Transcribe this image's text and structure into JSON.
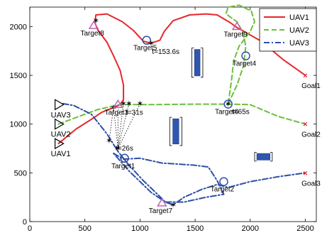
{
  "chart_data": {
    "type": "line",
    "xlim": [
      0,
      2600
    ],
    "ylim": [
      0,
      2200
    ],
    "x_ticks": [
      0,
      500,
      1000,
      1500,
      2000,
      2500
    ],
    "y_ticks": [
      0,
      500,
      1000,
      1500,
      2000
    ],
    "grid": false,
    "legend_position": "top-right",
    "colors": {
      "UAV1": "#e8262b",
      "UAV2": "#6cbf3e",
      "UAV3": "#2d4fa8",
      "obstacle": "#2f56b0",
      "target": "#c062b8",
      "marker": "#111111"
    },
    "series": [
      {
        "name": "UAV1",
        "style": "solid",
        "points": [
          [
            260,
            800
          ],
          [
            420,
            950
          ],
          [
            560,
            1050
          ],
          [
            650,
            1120
          ],
          [
            760,
            1170
          ],
          [
            820,
            1200
          ],
          [
            850,
            1250
          ],
          [
            850,
            1400
          ],
          [
            820,
            1550
          ],
          [
            760,
            1700
          ],
          [
            700,
            1840
          ],
          [
            620,
            1960
          ],
          [
            590,
            2040
          ],
          [
            600,
            2120
          ],
          [
            700,
            2130
          ],
          [
            840,
            2050
          ],
          [
            940,
            1960
          ],
          [
            990,
            1900
          ],
          [
            1030,
            1850
          ],
          [
            1100,
            1830
          ],
          [
            1180,
            1860
          ],
          [
            1220,
            1950
          ],
          [
            1300,
            2060
          ],
          [
            1450,
            2120
          ],
          [
            1600,
            2130
          ],
          [
            1700,
            2120
          ],
          [
            1760,
            2080
          ],
          [
            1820,
            2040
          ],
          [
            1880,
            1990
          ],
          [
            2100,
            1850
          ],
          [
            2300,
            1660
          ],
          [
            2500,
            1500
          ]
        ]
      },
      {
        "name": "UAV2",
        "style": "dashed",
        "points": [
          [
            260,
            1000
          ],
          [
            450,
            1080
          ],
          [
            620,
            1150
          ],
          [
            780,
            1190
          ],
          [
            850,
            1200
          ],
          [
            1100,
            1200
          ],
          [
            1500,
            1205
          ],
          [
            1800,
            1205
          ],
          [
            2000,
            1200
          ],
          [
            2250,
            1080
          ],
          [
            2500,
            1000
          ]
        ]
      },
      {
        "name": "UAV2",
        "style": "dashed",
        "points": [
          [
            1800,
            1205
          ],
          [
            1880,
            1400
          ],
          [
            1940,
            1600
          ],
          [
            1960,
            1800
          ],
          [
            1930,
            1950
          ],
          [
            1880,
            2050
          ],
          [
            1780,
            2130
          ],
          [
            1800,
            2200
          ],
          [
            1900,
            2220
          ],
          [
            2010,
            2160
          ],
          [
            2040,
            2050
          ],
          [
            2000,
            1950
          ],
          [
            1900,
            1800
          ],
          [
            1850,
            1650
          ],
          [
            1830,
            1450
          ],
          [
            1800,
            1205
          ]
        ]
      },
      {
        "name": "UAV3",
        "style": "dashdot",
        "points": [
          [
            300,
            1210
          ],
          [
            400,
            1190
          ],
          [
            560,
            1100
          ],
          [
            700,
            900
          ],
          [
            800,
            720
          ],
          [
            900,
            580
          ],
          [
            1030,
            420
          ],
          [
            1160,
            280
          ],
          [
            1230,
            200
          ],
          [
            1300,
            170
          ],
          [
            1400,
            250
          ],
          [
            1560,
            330
          ],
          [
            1700,
            380
          ],
          [
            1800,
            350
          ],
          [
            2000,
            410
          ],
          [
            2250,
            460
          ],
          [
            2500,
            500
          ]
        ]
      },
      {
        "name": "UAV3",
        "style": "dashdot",
        "points": [
          [
            760,
            700
          ],
          [
            850,
            640
          ],
          [
            1000,
            650
          ],
          [
            1200,
            600
          ],
          [
            1480,
            580
          ],
          [
            1620,
            560
          ],
          [
            1700,
            420
          ],
          [
            1760,
            280
          ],
          [
            1600,
            250
          ],
          [
            1400,
            200
          ],
          [
            1230,
            200
          ],
          [
            1100,
            300
          ],
          [
            900,
            520
          ],
          [
            760,
            700
          ]
        ]
      }
    ],
    "targets": [
      {
        "label": "Target1",
        "x": 860,
        "y": 650,
        "marker": "circle"
      },
      {
        "label": "Target2",
        "x": 1760,
        "y": 410,
        "marker": "circle"
      },
      {
        "label": "Target3",
        "x": 800,
        "y": 1200,
        "marker": "triangle"
      },
      {
        "label": "Target4",
        "x": 1960,
        "y": 1700,
        "marker": "circle"
      },
      {
        "label": "Target5",
        "x": 1060,
        "y": 1860,
        "marker": "circle"
      },
      {
        "label": "Target6",
        "x": 1800,
        "y": 1205,
        "marker": "circle"
      },
      {
        "label": "Target7",
        "x": 1200,
        "y": 190,
        "marker": "triangle"
      },
      {
        "label": "Target8",
        "x": 580,
        "y": 2010,
        "marker": "triangle"
      },
      {
        "label": "Target9",
        "x": 1880,
        "y": 2000,
        "marker": "triangle"
      }
    ],
    "goals": [
      {
        "label": "Goal1",
        "x": 2500,
        "y": 1500
      },
      {
        "label": "Goal2",
        "x": 2500,
        "y": 1000
      },
      {
        "label": "Goal3",
        "x": 2500,
        "y": 500
      }
    ],
    "start_labels": [
      {
        "label": "UAV1",
        "x": 255,
        "y": 800
      },
      {
        "label": "UAV2",
        "x": 255,
        "y": 1000
      },
      {
        "label": "UAV3",
        "x": 255,
        "y": 1200
      }
    ],
    "time_annotations": [
      {
        "label": "t=153.6s",
        "x": 1090,
        "y": 1820
      },
      {
        "label": "t=65s",
        "x": 1815,
        "y": 1205
      },
      {
        "label": "t=31s",
        "x": 850,
        "y": 1200
      },
      {
        "label": "t=26s",
        "x": 760,
        "y": 830
      }
    ],
    "obstacles": [
      {
        "x0": 1470,
        "x1": 1570,
        "y0": 1480,
        "y1": 1780
      },
      {
        "x0": 1270,
        "x1": 1380,
        "y0": 780,
        "y1": 1070
      },
      {
        "x0": 2040,
        "x1": 2200,
        "y0": 620,
        "y1": 710
      }
    ],
    "dotted_links": [
      [
        [
          760,
          1170
        ],
        [
          720,
          830
        ]
      ],
      [
        [
          800,
          1200
        ],
        [
          800,
          750
        ]
      ],
      [
        [
          850,
          1210
        ],
        [
          800,
          750
        ]
      ],
      [
        [
          900,
          1210
        ],
        [
          800,
          750
        ]
      ],
      [
        [
          1000,
          1210
        ],
        [
          800,
          750
        ]
      ],
      [
        [
          760,
          1170
        ],
        [
          800,
          750
        ]
      ]
    ],
    "markers": [
      [
        600,
        2060
      ],
      [
        1100,
        1830
      ],
      [
        1800,
        1205
      ],
      [
        850,
        1210
      ],
      [
        900,
        1210
      ],
      [
        1000,
        1210
      ],
      [
        760,
        1170
      ],
      [
        720,
        830
      ],
      [
        800,
        750
      ],
      [
        1300,
        170
      ]
    ]
  }
}
